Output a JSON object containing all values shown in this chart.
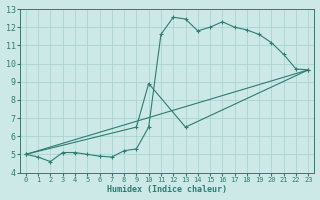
{
  "xlabel": "Humidex (Indice chaleur)",
  "xlim": [
    -0.5,
    23.5
  ],
  "ylim": [
    4,
    13
  ],
  "yticks": [
    4,
    5,
    6,
    7,
    8,
    9,
    10,
    11,
    12,
    13
  ],
  "xticks": [
    0,
    1,
    2,
    3,
    4,
    5,
    6,
    7,
    8,
    9,
    10,
    11,
    12,
    13,
    14,
    15,
    16,
    17,
    18,
    19,
    20,
    21,
    22,
    23
  ],
  "bg_color": "#cce9e8",
  "grid_color": "#aad4d2",
  "line_color": "#2e7c72",
  "curve1_x": [
    0,
    1,
    2,
    3,
    4,
    5,
    6,
    7,
    8,
    9,
    10,
    11,
    12,
    13,
    14,
    15,
    16,
    17,
    18,
    19,
    20,
    21,
    22,
    23
  ],
  "curve1_y": [
    5.0,
    4.85,
    4.6,
    5.1,
    5.1,
    5.0,
    4.9,
    4.85,
    5.2,
    5.3,
    6.5,
    11.6,
    12.55,
    12.45,
    11.8,
    12.0,
    12.3,
    12.0,
    11.85,
    11.6,
    11.15,
    10.5,
    9.7,
    9.65
  ],
  "curve2_x": [
    0,
    9,
    10,
    13,
    23
  ],
  "curve2_y": [
    5.0,
    6.5,
    8.9,
    6.5,
    9.65
  ],
  "curve3_x": [
    0,
    23
  ],
  "curve3_y": [
    5.0,
    9.65
  ],
  "marker1_size": 2.5,
  "marker2_size": 3.0,
  "marker3_size": 3.0
}
